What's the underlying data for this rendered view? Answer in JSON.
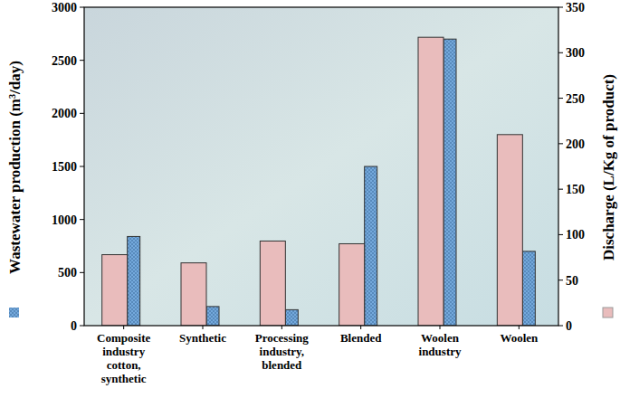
{
  "chart_data": {
    "type": "bar",
    "categories": [
      "Composite industry cotton, synthetic",
      "Synthetic",
      "Processing industry, blended",
      "Blended",
      "Woolen industry",
      "Woolen"
    ],
    "series": [
      {
        "name": "Wastewater production (m³/day)",
        "color": "#74a9dc",
        "values": [
          840,
          180,
          150,
          1500,
          2700,
          700
        ]
      },
      {
        "name": "Discharge (L/Kg of product)",
        "color": "#e9bcbc",
        "axis": "y2",
        "values": [
          78,
          69,
          93,
          90,
          317,
          210
        ]
      }
    ],
    "ylim": [
      0,
      3000
    ],
    "yticks": [
      0,
      500,
      1000,
      1500,
      2000,
      2500,
      3000
    ],
    "y2lim": [
      0,
      350
    ],
    "y2ticks": [
      0,
      50,
      100,
      150,
      200,
      250,
      300,
      350
    ]
  }
}
